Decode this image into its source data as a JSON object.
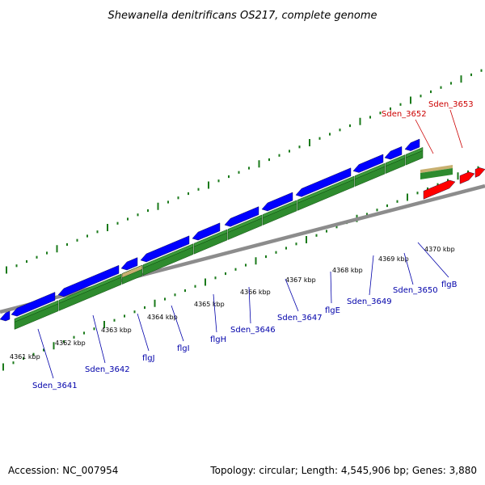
{
  "title": "Shewanella denitrificans OS217, complete genome",
  "footer": {
    "accession": "Accession: NC_007954",
    "summary": "Topology: circular; Length: 4,545,906 bp; Genes: 3,880"
  },
  "colors": {
    "blue_gene": "#0000ff",
    "red_gene": "#ff0000",
    "green_band": "#2e8b2e",
    "tan_band": "#c8b070",
    "backbone": "#8c8c8c",
    "tick": "#1a7a1a",
    "label_blue": "#0000aa",
    "label_red": "#cc0000"
  },
  "kbp_labels": [
    "4361 kbp",
    "4362 kbp",
    "4363 kbp",
    "4364 kbp",
    "4365 kbp",
    "4366 kbp",
    "4367 kbp",
    "4368 kbp",
    "4369 kbp",
    "4370 kbp"
  ],
  "gene_labels": {
    "blue": [
      "Sden_3641",
      "Sden_3642",
      "flgJ",
      "flgI",
      "flgH",
      "Sden_3646",
      "Sden_3647",
      "flgE",
      "Sden_3649",
      "Sden_3650",
      "flgB"
    ],
    "red": [
      "Sden_3652",
      "Sden_3653"
    ]
  }
}
